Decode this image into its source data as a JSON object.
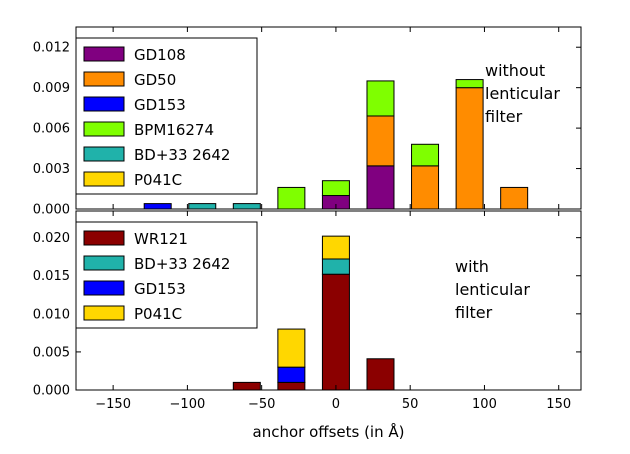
{
  "chart_data": [
    {
      "type": "bar",
      "stacked": true,
      "x": [
        -150,
        -120,
        -90,
        -60,
        -30,
        0,
        30,
        60,
        90,
        120,
        150
      ],
      "ylim": [
        0,
        0.0135
      ],
      "yticks": [
        "0.000",
        "0.003",
        "0.006",
        "0.009",
        "0.012"
      ],
      "ytick_values": [
        0,
        0.003,
        0.006,
        0.009,
        0.012
      ],
      "annotation": [
        "without",
        "lenticular",
        "filter"
      ],
      "legend_placement": "top-left",
      "series": [
        {
          "name": "GD108",
          "color": "#800080",
          "values": [
            0,
            0,
            0,
            0,
            0,
            0.001,
            0.0032,
            0,
            0,
            0,
            0
          ]
        },
        {
          "name": "GD50",
          "color": "#ff8c00",
          "values": [
            0,
            0,
            0,
            0,
            0,
            0,
            0.0037,
            0.0032,
            0.009,
            0.0016,
            0
          ]
        },
        {
          "name": "GD153",
          "color": "#0000ff",
          "values": [
            0,
            0.0004,
            0,
            0,
            0,
            0,
            0,
            0,
            0,
            0,
            0
          ]
        },
        {
          "name": "BPM16274",
          "color": "#7fff00",
          "values": [
            0,
            0,
            0,
            0,
            0.0016,
            0.0011,
            0.0026,
            0.0016,
            0.0006,
            0,
            0
          ]
        },
        {
          "name": "BD+33 2642",
          "color": "#20b2aa",
          "values": [
            0,
            0,
            0.0004,
            0.0004,
            0,
            0,
            0,
            0,
            0,
            0,
            0
          ]
        },
        {
          "name": "P041C",
          "color": "#ffd700",
          "values": [
            0,
            0,
            0,
            0,
            0,
            0,
            0,
            0,
            0,
            0,
            0
          ]
        }
      ]
    },
    {
      "type": "bar",
      "stacked": true,
      "x": [
        -150,
        -120,
        -90,
        -60,
        -30,
        0,
        30,
        60,
        90,
        120,
        150
      ],
      "ylim": [
        0,
        0.0235
      ],
      "yticks": [
        "0.000",
        "0.005",
        "0.010",
        "0.015",
        "0.020"
      ],
      "ytick_values": [
        0,
        0.005,
        0.01,
        0.015,
        0.02
      ],
      "annotation": [
        "with",
        "lenticular",
        "filter"
      ],
      "legend_placement": "top-left",
      "series": [
        {
          "name": "WR121",
          "color": "#8b0000",
          "values": [
            0,
            0,
            0,
            0.001,
            0.001,
            0.0152,
            0.0041,
            0,
            0,
            0,
            0
          ]
        },
        {
          "name": "BD+33 2642",
          "color": "#20b2aa",
          "values": [
            0,
            0,
            0,
            0,
            0,
            0.002,
            0,
            0,
            0,
            0,
            0
          ]
        },
        {
          "name": "GD153",
          "color": "#0000ff",
          "values": [
            0,
            0,
            0,
            0,
            0.002,
            0,
            0,
            0,
            0,
            0,
            0
          ]
        },
        {
          "name": "P041C",
          "color": "#ffd700",
          "values": [
            0,
            0,
            0,
            0,
            0.005,
            0.003,
            0,
            0,
            0,
            0,
            0
          ]
        }
      ]
    }
  ],
  "xaxis": {
    "label": "anchor offsets (in Å)",
    "ticks": [
      -150,
      -100,
      -50,
      0,
      50,
      100,
      150
    ],
    "tick_labels": [
      "−150",
      "−100",
      "−50",
      "0",
      "50",
      "100",
      "150"
    ],
    "xlim": [
      -175,
      165
    ]
  }
}
